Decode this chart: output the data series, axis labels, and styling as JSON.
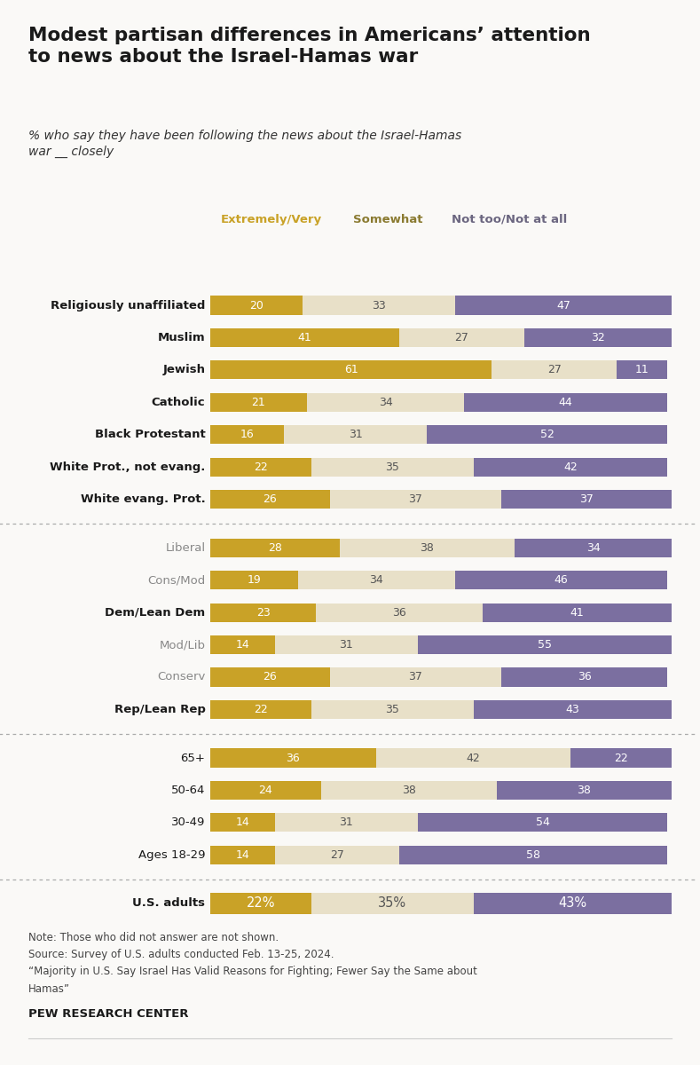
{
  "title": "Modest partisan differences in Americans’ attention\nto news about the Israel-Hamas war",
  "subtitle": "% who say they have been following the news about the Israel-Hamas\nwar __ closely",
  "legend_labels": [
    "Extremely/Very",
    "Somewhat",
    "Not too/Not at all"
  ],
  "legend_colors": [
    "#c9a227",
    "#8a7a30",
    "#6b6680"
  ],
  "colors": {
    "extremely": "#c9a227",
    "somewhat": "#e8e0c8",
    "not_too": "#7b6fa0"
  },
  "categories": [
    "U.S. adults",
    "Ages 18-29",
    "30-49",
    "50-64",
    "65+",
    "Rep/Lean Rep",
    "Conserv",
    "Mod/Lib",
    "Dem/Lean Dem",
    "Cons/Mod",
    "Liberal",
    "White evang. Prot.",
    "White Prot., not evang.",
    "Black Protestant",
    "Catholic",
    "Jewish",
    "Muslim",
    "Religiously unaffiliated"
  ],
  "data": [
    [
      22,
      35,
      43
    ],
    [
      14,
      27,
      58
    ],
    [
      14,
      31,
      54
    ],
    [
      24,
      38,
      38
    ],
    [
      36,
      42,
      22
    ],
    [
      22,
      35,
      43
    ],
    [
      26,
      37,
      36
    ],
    [
      14,
      31,
      55
    ],
    [
      23,
      36,
      41
    ],
    [
      19,
      34,
      46
    ],
    [
      28,
      38,
      34
    ],
    [
      26,
      37,
      37
    ],
    [
      22,
      35,
      42
    ],
    [
      16,
      31,
      52
    ],
    [
      21,
      34,
      44
    ],
    [
      61,
      27,
      11
    ],
    [
      41,
      27,
      32
    ],
    [
      20,
      33,
      47
    ]
  ],
  "bold_label_rows": [
    0,
    5,
    8,
    11,
    12,
    13,
    14,
    15,
    16,
    17
  ],
  "gray_label_rows": [
    6,
    7,
    9,
    10
  ],
  "separator_after": [
    0,
    4,
    10
  ],
  "pct_sign_rows": [
    0
  ],
  "note_lines": [
    "Note: Those who did not answer are not shown.",
    "Source: Survey of U.S. adults conducted Feb. 13-25, 2024.",
    "“Majority in U.S. Say Israel Has Valid Reasons for Fighting; Fewer Say the Same about",
    "Hamas”"
  ],
  "footer": "PEW RESEARCH CENTER",
  "bg_color": "#faf9f7",
  "text_color": "#1a1a1a",
  "note_color": "#444444"
}
